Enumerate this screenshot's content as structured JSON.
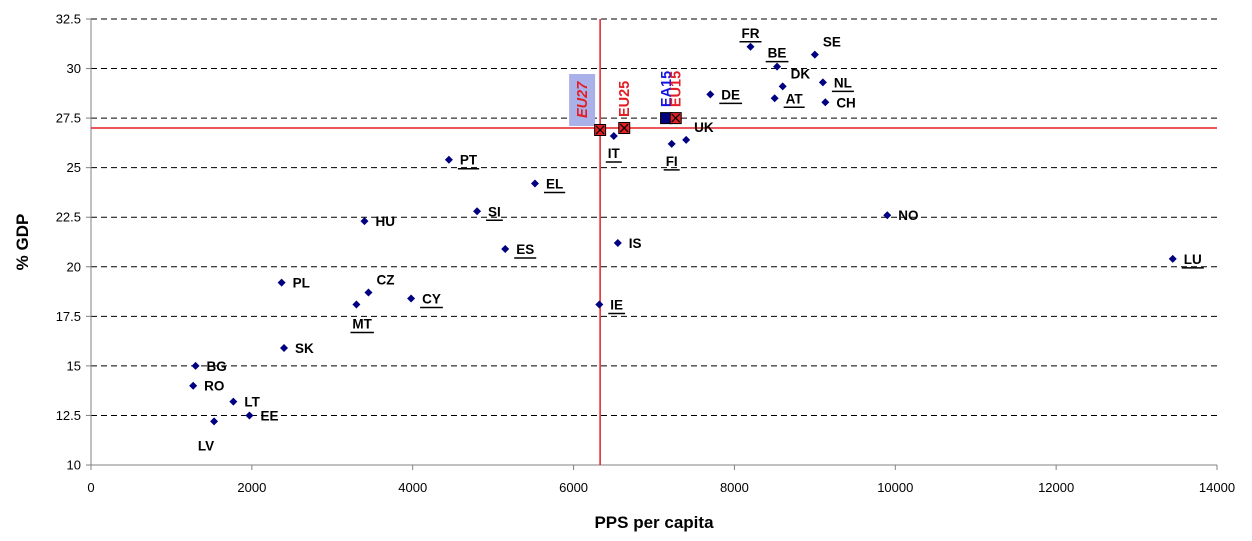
{
  "chart_data": {
    "type": "scatter",
    "title": "",
    "xlabel": "PPS per capita",
    "ylabel": "% GDP",
    "xlim": [
      0,
      14000
    ],
    "ylim": [
      10,
      32.5
    ],
    "xticks": [
      0,
      2000,
      4000,
      6000,
      8000,
      10000,
      12000,
      14000
    ],
    "xtick_labels": [
      "0",
      "2000",
      "4000",
      "6000",
      "8000",
      "10000",
      "12000",
      "14000"
    ],
    "yticks": [
      10,
      12.5,
      15,
      17.5,
      20,
      22.5,
      25,
      27.5,
      30,
      32.5
    ],
    "ytick_labels": [
      "10",
      "12.5",
      "15",
      "17.5",
      "20",
      "22.5",
      "25",
      "27.5",
      "30",
      "32.5"
    ],
    "grid": "horizontal dashed",
    "point_color": "#000080",
    "reference_line_color": "#e31e24",
    "reference_lines": {
      "x": 6330,
      "y": 27.0
    },
    "points": [
      {
        "label": "FR",
        "x": 8200,
        "y": 31.1,
        "underline": true,
        "label_pos": "above"
      },
      {
        "label": "SE",
        "x": 9000,
        "y": 30.7,
        "underline": false,
        "label_pos": "above-right"
      },
      {
        "label": "BE",
        "x": 8530,
        "y": 30.1,
        "underline": true,
        "label_pos": "above"
      },
      {
        "label": "NL",
        "x": 9100,
        "y": 29.3,
        "underline": true,
        "label_pos": "right"
      },
      {
        "label": "DK",
        "x": 8600,
        "y": 29.1,
        "underline": false,
        "label_pos": "above-right"
      },
      {
        "label": "DE",
        "x": 7700,
        "y": 28.7,
        "underline": true,
        "label_pos": "right"
      },
      {
        "label": "AT",
        "x": 8500,
        "y": 28.5,
        "underline": true,
        "label_pos": "right"
      },
      {
        "label": "CH",
        "x": 9130,
        "y": 28.3,
        "underline": false,
        "label_pos": "right"
      },
      {
        "label": "UK",
        "x": 7400,
        "y": 26.4,
        "underline": false,
        "label_pos": "above-right"
      },
      {
        "label": "IT",
        "x": 6500,
        "y": 26.6,
        "underline": true,
        "label_pos": "below"
      },
      {
        "label": "FI",
        "x": 7220,
        "y": 26.2,
        "underline": true,
        "label_pos": "below"
      },
      {
        "label": "PT",
        "x": 4450,
        "y": 25.4,
        "underline": true,
        "label_pos": "right"
      },
      {
        "label": "EL",
        "x": 5520,
        "y": 24.2,
        "underline": true,
        "label_pos": "right"
      },
      {
        "label": "SI",
        "x": 4800,
        "y": 22.8,
        "underline": true,
        "label_pos": "right"
      },
      {
        "label": "HU",
        "x": 3400,
        "y": 22.3,
        "underline": false,
        "label_pos": "right"
      },
      {
        "label": "NO",
        "x": 9900,
        "y": 22.6,
        "underline": false,
        "label_pos": "right"
      },
      {
        "label": "IS",
        "x": 6550,
        "y": 21.2,
        "underline": false,
        "label_pos": "right"
      },
      {
        "label": "ES",
        "x": 5150,
        "y": 20.9,
        "underline": true,
        "label_pos": "right"
      },
      {
        "label": "LU",
        "x": 13450,
        "y": 20.4,
        "underline": true,
        "label_pos": "right"
      },
      {
        "label": "PL",
        "x": 2370,
        "y": 19.2,
        "underline": false,
        "label_pos": "right"
      },
      {
        "label": "CZ",
        "x": 3450,
        "y": 18.7,
        "underline": false,
        "label_pos": "above-right"
      },
      {
        "label": "CY",
        "x": 3980,
        "y": 18.4,
        "underline": true,
        "label_pos": "right"
      },
      {
        "label": "MT",
        "x": 3300,
        "y": 18.1,
        "underline": true,
        "label_pos": "below-right"
      },
      {
        "label": "IE",
        "x": 6320,
        "y": 18.1,
        "underline": true,
        "label_pos": "right"
      },
      {
        "label": "SK",
        "x": 2400,
        "y": 15.9,
        "underline": false,
        "label_pos": "right"
      },
      {
        "label": "BG",
        "x": 1300,
        "y": 15.0,
        "underline": false,
        "label_pos": "right"
      },
      {
        "label": "RO",
        "x": 1270,
        "y": 14.0,
        "underline": false,
        "label_pos": "right"
      },
      {
        "label": "LT",
        "x": 1770,
        "y": 13.2,
        "underline": false,
        "label_pos": "right"
      },
      {
        "label": "EE",
        "x": 1970,
        "y": 12.5,
        "underline": false,
        "label_pos": "right"
      },
      {
        "label": "LV",
        "x": 1530,
        "y": 12.2,
        "underline": false,
        "label_pos": "below-left"
      }
    ],
    "aggregates": [
      {
        "label": "EU27",
        "x": 6330,
        "y": 26.9,
        "marker": "x-square",
        "label_color": "#e31e24",
        "italic": true,
        "highlight": "#aab0e8"
      },
      {
        "label": "EU25",
        "x": 6630,
        "y": 27.0,
        "marker": "x-square",
        "label_color": "#e31e24",
        "italic": false
      },
      {
        "label": "EA15",
        "x": 7150,
        "y": 27.5,
        "marker": "square",
        "label_color": "#1414e0",
        "italic": false
      },
      {
        "label": "EU15",
        "x": 7270,
        "y": 27.5,
        "marker": "x-square",
        "label_color": "#e31e24",
        "italic": false
      }
    ]
  }
}
